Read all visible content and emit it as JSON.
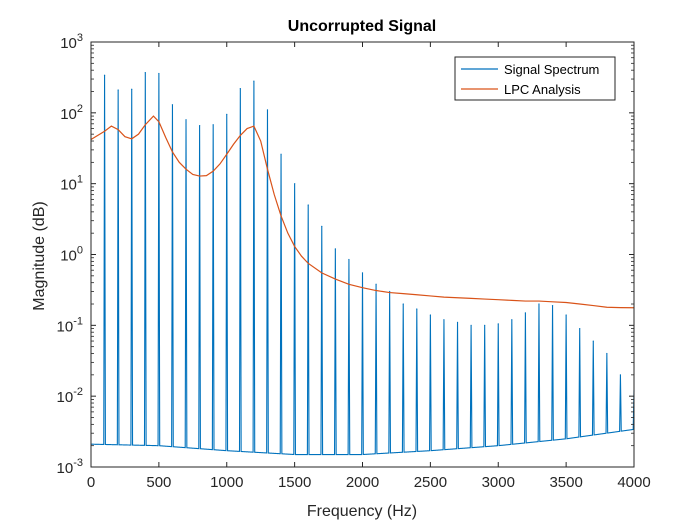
{
  "chart_data": {
    "type": "line",
    "title": "Uncorrupted Signal",
    "xlabel": "Frequency (Hz)",
    "ylabel": "Magnitude (dB)",
    "xlim": [
      0,
      4000
    ],
    "ylim": [
      0.001,
      1000
    ],
    "yscale": "log",
    "grid": false,
    "legend_position": "top-right",
    "x_ticks": [
      0,
      500,
      1000,
      1500,
      2000,
      2500,
      3000,
      3500,
      4000
    ],
    "x_tick_labels": [
      "0",
      "500",
      "1000",
      "1500",
      "2000",
      "2500",
      "3000",
      "3500",
      "4000"
    ],
    "y_ticks": [
      0.001,
      0.01,
      0.1,
      1,
      10,
      100,
      1000
    ],
    "y_tick_labels": [
      {
        "base": "10",
        "exp": "-3"
      },
      {
        "base": "10",
        "exp": "-2"
      },
      {
        "base": "10",
        "exp": "-1"
      },
      {
        "base": "10",
        "exp": "0"
      },
      {
        "base": "10",
        "exp": "1"
      },
      {
        "base": "10",
        "exp": "2"
      },
      {
        "base": "10",
        "exp": "3"
      }
    ],
    "series": [
      {
        "name": "Signal Spectrum",
        "color": "#0072BD",
        "harmonic_spacing_hz": 100,
        "peaks": [
          {
            "x": 100,
            "y": 340
          },
          {
            "x": 200,
            "y": 210
          },
          {
            "x": 300,
            "y": 215
          },
          {
            "x": 400,
            "y": 370
          },
          {
            "x": 500,
            "y": 360
          },
          {
            "x": 600,
            "y": 130
          },
          {
            "x": 700,
            "y": 80
          },
          {
            "x": 800,
            "y": 66
          },
          {
            "x": 900,
            "y": 68
          },
          {
            "x": 1000,
            "y": 95
          },
          {
            "x": 1100,
            "y": 220
          },
          {
            "x": 1200,
            "y": 280
          },
          {
            "x": 1300,
            "y": 110
          },
          {
            "x": 1400,
            "y": 26
          },
          {
            "x": 1500,
            "y": 10
          },
          {
            "x": 1600,
            "y": 5
          },
          {
            "x": 1700,
            "y": 2.5
          },
          {
            "x": 1800,
            "y": 1.2
          },
          {
            "x": 1900,
            "y": 0.85
          },
          {
            "x": 2000,
            "y": 0.55
          },
          {
            "x": 2100,
            "y": 0.38
          },
          {
            "x": 2200,
            "y": 0.3
          },
          {
            "x": 2300,
            "y": 0.2
          },
          {
            "x": 2400,
            "y": 0.17
          },
          {
            "x": 2500,
            "y": 0.14
          },
          {
            "x": 2600,
            "y": 0.12
          },
          {
            "x": 2700,
            "y": 0.11
          },
          {
            "x": 2800,
            "y": 0.1
          },
          {
            "x": 2900,
            "y": 0.1
          },
          {
            "x": 3000,
            "y": 0.105
          },
          {
            "x": 3100,
            "y": 0.12
          },
          {
            "x": 3200,
            "y": 0.15
          },
          {
            "x": 3300,
            "y": 0.2
          },
          {
            "x": 3400,
            "y": 0.19
          },
          {
            "x": 3500,
            "y": 0.14
          },
          {
            "x": 3600,
            "y": 0.09
          },
          {
            "x": 3700,
            "y": 0.06
          },
          {
            "x": 3800,
            "y": 0.04
          },
          {
            "x": 3900,
            "y": 0.02
          },
          {
            "x": 4000,
            "y": 0.012
          }
        ],
        "floor": [
          {
            "x": 0,
            "y": 0.0021
          },
          {
            "x": 500,
            "y": 0.002
          },
          {
            "x": 1000,
            "y": 0.0017
          },
          {
            "x": 1500,
            "y": 0.0015
          },
          {
            "x": 2000,
            "y": 0.0015
          },
          {
            "x": 2500,
            "y": 0.0017
          },
          {
            "x": 3000,
            "y": 0.002
          },
          {
            "x": 3500,
            "y": 0.0025
          },
          {
            "x": 4000,
            "y": 0.0034
          }
        ]
      },
      {
        "name": "LPC Analysis",
        "color": "#D95319",
        "points": [
          {
            "x": 0,
            "y": 42
          },
          {
            "x": 100,
            "y": 55
          },
          {
            "x": 150,
            "y": 65
          },
          {
            "x": 200,
            "y": 58
          },
          {
            "x": 250,
            "y": 46
          },
          {
            "x": 300,
            "y": 43
          },
          {
            "x": 350,
            "y": 50
          },
          {
            "x": 400,
            "y": 68
          },
          {
            "x": 460,
            "y": 90
          },
          {
            "x": 500,
            "y": 75
          },
          {
            "x": 550,
            "y": 45
          },
          {
            "x": 600,
            "y": 28
          },
          {
            "x": 650,
            "y": 20
          },
          {
            "x": 700,
            "y": 16
          },
          {
            "x": 750,
            "y": 13.5
          },
          {
            "x": 800,
            "y": 12.8
          },
          {
            "x": 850,
            "y": 13
          },
          {
            "x": 900,
            "y": 15
          },
          {
            "x": 950,
            "y": 19
          },
          {
            "x": 1000,
            "y": 26
          },
          {
            "x": 1050,
            "y": 36
          },
          {
            "x": 1100,
            "y": 48
          },
          {
            "x": 1150,
            "y": 60
          },
          {
            "x": 1200,
            "y": 65
          },
          {
            "x": 1250,
            "y": 40
          },
          {
            "x": 1300,
            "y": 16
          },
          {
            "x": 1350,
            "y": 7
          },
          {
            "x": 1400,
            "y": 3.5
          },
          {
            "x": 1450,
            "y": 2
          },
          {
            "x": 1500,
            "y": 1.3
          },
          {
            "x": 1550,
            "y": 0.95
          },
          {
            "x": 1600,
            "y": 0.75
          },
          {
            "x": 1700,
            "y": 0.55
          },
          {
            "x": 1800,
            "y": 0.45
          },
          {
            "x": 1900,
            "y": 0.38
          },
          {
            "x": 2000,
            "y": 0.34
          },
          {
            "x": 2100,
            "y": 0.31
          },
          {
            "x": 2200,
            "y": 0.29
          },
          {
            "x": 2300,
            "y": 0.28
          },
          {
            "x": 2400,
            "y": 0.27
          },
          {
            "x": 2500,
            "y": 0.26
          },
          {
            "x": 2600,
            "y": 0.25
          },
          {
            "x": 2700,
            "y": 0.245
          },
          {
            "x": 2800,
            "y": 0.24
          },
          {
            "x": 2900,
            "y": 0.235
          },
          {
            "x": 3000,
            "y": 0.23
          },
          {
            "x": 3100,
            "y": 0.225
          },
          {
            "x": 3200,
            "y": 0.22
          },
          {
            "x": 3300,
            "y": 0.22
          },
          {
            "x": 3400,
            "y": 0.215
          },
          {
            "x": 3500,
            "y": 0.21
          },
          {
            "x": 3600,
            "y": 0.2
          },
          {
            "x": 3700,
            "y": 0.19
          },
          {
            "x": 3800,
            "y": 0.18
          },
          {
            "x": 3900,
            "y": 0.178
          },
          {
            "x": 4000,
            "y": 0.177
          }
        ]
      }
    ]
  }
}
